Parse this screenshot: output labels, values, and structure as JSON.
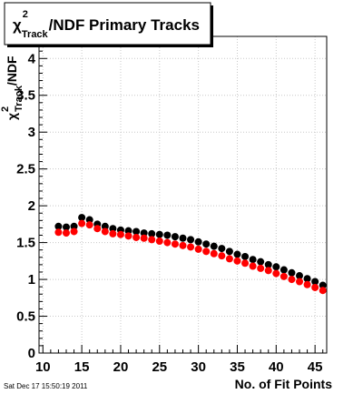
{
  "chart_data": {
    "type": "scatter",
    "title": {
      "chi": "χ",
      "sup": "2",
      "sub": "Track",
      "rest": "/NDF Primary Tracks"
    },
    "xlabel": "No. of Fit Points",
    "ylabel": {
      "chi": "χ",
      "sup": "2",
      "sub": "Track",
      "rest": "/NDF"
    },
    "xlim": [
      9.5,
      46.5
    ],
    "ylim": [
      0,
      4.3
    ],
    "x_ticks": [
      10,
      15,
      20,
      25,
      30,
      35,
      40,
      45
    ],
    "y_ticks": [
      "0",
      "0.5",
      "1",
      "1.5",
      "2",
      "2.5",
      "3",
      "3.5",
      "4"
    ],
    "grid": true,
    "series": [
      {
        "color": "#000000",
        "x": [
          12,
          13,
          14,
          15,
          16,
          17,
          18,
          19,
          20,
          21,
          22,
          23,
          24,
          25,
          26,
          27,
          28,
          29,
          30,
          31,
          32,
          33,
          34,
          35,
          36,
          37,
          38,
          39,
          40,
          41,
          42,
          43,
          44,
          45,
          46
        ],
        "values": [
          1.72,
          1.71,
          1.72,
          1.84,
          1.81,
          1.75,
          1.72,
          1.69,
          1.67,
          1.66,
          1.65,
          1.63,
          1.62,
          1.61,
          1.6,
          1.58,
          1.56,
          1.54,
          1.51,
          1.48,
          1.45,
          1.42,
          1.38,
          1.34,
          1.31,
          1.27,
          1.24,
          1.2,
          1.17,
          1.13,
          1.09,
          1.05,
          1.01,
          0.97,
          0.92
        ]
      },
      {
        "color": "#ff0000",
        "x": [
          12,
          13,
          14,
          15,
          16,
          17,
          18,
          19,
          20,
          21,
          22,
          23,
          24,
          25,
          26,
          27,
          28,
          29,
          30,
          31,
          32,
          33,
          34,
          35,
          36,
          37,
          38,
          39,
          40,
          41,
          42,
          43,
          44,
          45,
          46
        ],
        "values": [
          1.64,
          1.63,
          1.65,
          1.76,
          1.74,
          1.69,
          1.65,
          1.62,
          1.61,
          1.59,
          1.57,
          1.56,
          1.54,
          1.52,
          1.5,
          1.48,
          1.46,
          1.44,
          1.41,
          1.38,
          1.35,
          1.32,
          1.28,
          1.25,
          1.22,
          1.18,
          1.15,
          1.12,
          1.08,
          1.04,
          1.0,
          0.97,
          0.93,
          0.89,
          0.85
        ]
      }
    ]
  },
  "footer": {
    "timestamp": "Sat Dec 17 15:50:19 2011"
  }
}
